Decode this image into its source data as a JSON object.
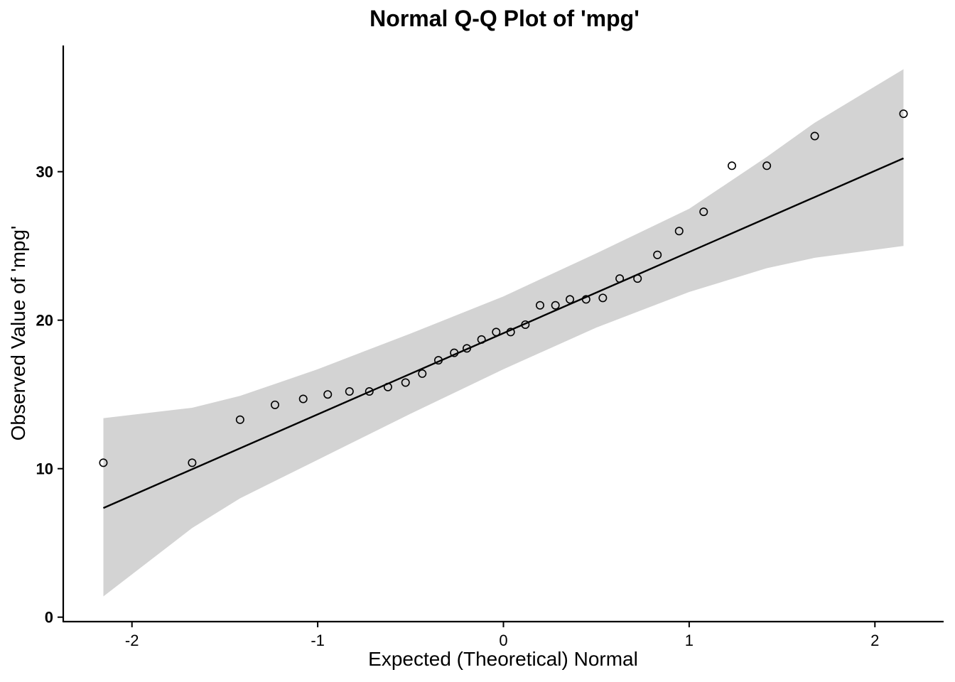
{
  "chart_data": {
    "type": "scatter",
    "title": "Normal Q-Q Plot of 'mpg'",
    "xlabel": "Expected (Theoretical) Normal",
    "ylabel": "Observed Value of 'mpg'",
    "xlim": [
      -2.37,
      2.37
    ],
    "ylim": [
      -0.3,
      38.5
    ],
    "x_ticks": [
      -2,
      -1,
      0,
      1,
      2
    ],
    "y_ticks": [
      0,
      10,
      20,
      30
    ],
    "grid": false,
    "legend": "none",
    "colors": {
      "points": "#000000",
      "line": "#000000",
      "band": "#d3d3d3"
    },
    "points": [
      {
        "x": -2.154,
        "y": 10.4
      },
      {
        "x": -1.676,
        "y": 10.4
      },
      {
        "x": -1.418,
        "y": 13.3
      },
      {
        "x": -1.23,
        "y": 14.3
      },
      {
        "x": -1.078,
        "y": 14.7
      },
      {
        "x": -0.946,
        "y": 15.0
      },
      {
        "x": -0.829,
        "y": 15.2
      },
      {
        "x": -0.722,
        "y": 15.2
      },
      {
        "x": -0.622,
        "y": 15.5
      },
      {
        "x": -0.527,
        "y": 15.8
      },
      {
        "x": -0.437,
        "y": 16.4
      },
      {
        "x": -0.35,
        "y": 17.3
      },
      {
        "x": -0.265,
        "y": 17.8
      },
      {
        "x": -0.197,
        "y": 18.1
      },
      {
        "x": -0.118,
        "y": 18.7
      },
      {
        "x": -0.039,
        "y": 19.2
      },
      {
        "x": 0.039,
        "y": 19.2
      },
      {
        "x": 0.118,
        "y": 19.7
      },
      {
        "x": 0.197,
        "y": 21.0
      },
      {
        "x": 0.28,
        "y": 21.0
      },
      {
        "x": 0.358,
        "y": 21.4
      },
      {
        "x": 0.445,
        "y": 21.4
      },
      {
        "x": 0.535,
        "y": 21.5
      },
      {
        "x": 0.626,
        "y": 22.8
      },
      {
        "x": 0.722,
        "y": 22.8
      },
      {
        "x": 0.829,
        "y": 24.4
      },
      {
        "x": 0.946,
        "y": 26.0
      },
      {
        "x": 1.078,
        "y": 27.3
      },
      {
        "x": 1.23,
        "y": 30.4
      },
      {
        "x": 1.418,
        "y": 30.4
      },
      {
        "x": 1.676,
        "y": 32.4
      },
      {
        "x": 2.154,
        "y": 33.9
      }
    ],
    "reference_line": {
      "x": [
        -2.154,
        2.154
      ],
      "y": [
        7.35,
        30.9
      ]
    },
    "confidence_band": {
      "x": [
        -2.154,
        -1.676,
        -1.418,
        -1.0,
        -0.5,
        0.0,
        0.5,
        1.0,
        1.418,
        1.676,
        2.154
      ],
      "lower": [
        1.4,
        6.0,
        8.0,
        10.6,
        13.7,
        16.7,
        19.5,
        21.9,
        23.5,
        24.2,
        25.0
      ],
      "upper": [
        13.4,
        14.1,
        14.9,
        16.7,
        19.1,
        21.6,
        24.5,
        27.5,
        31.0,
        33.3,
        36.9
      ]
    }
  }
}
